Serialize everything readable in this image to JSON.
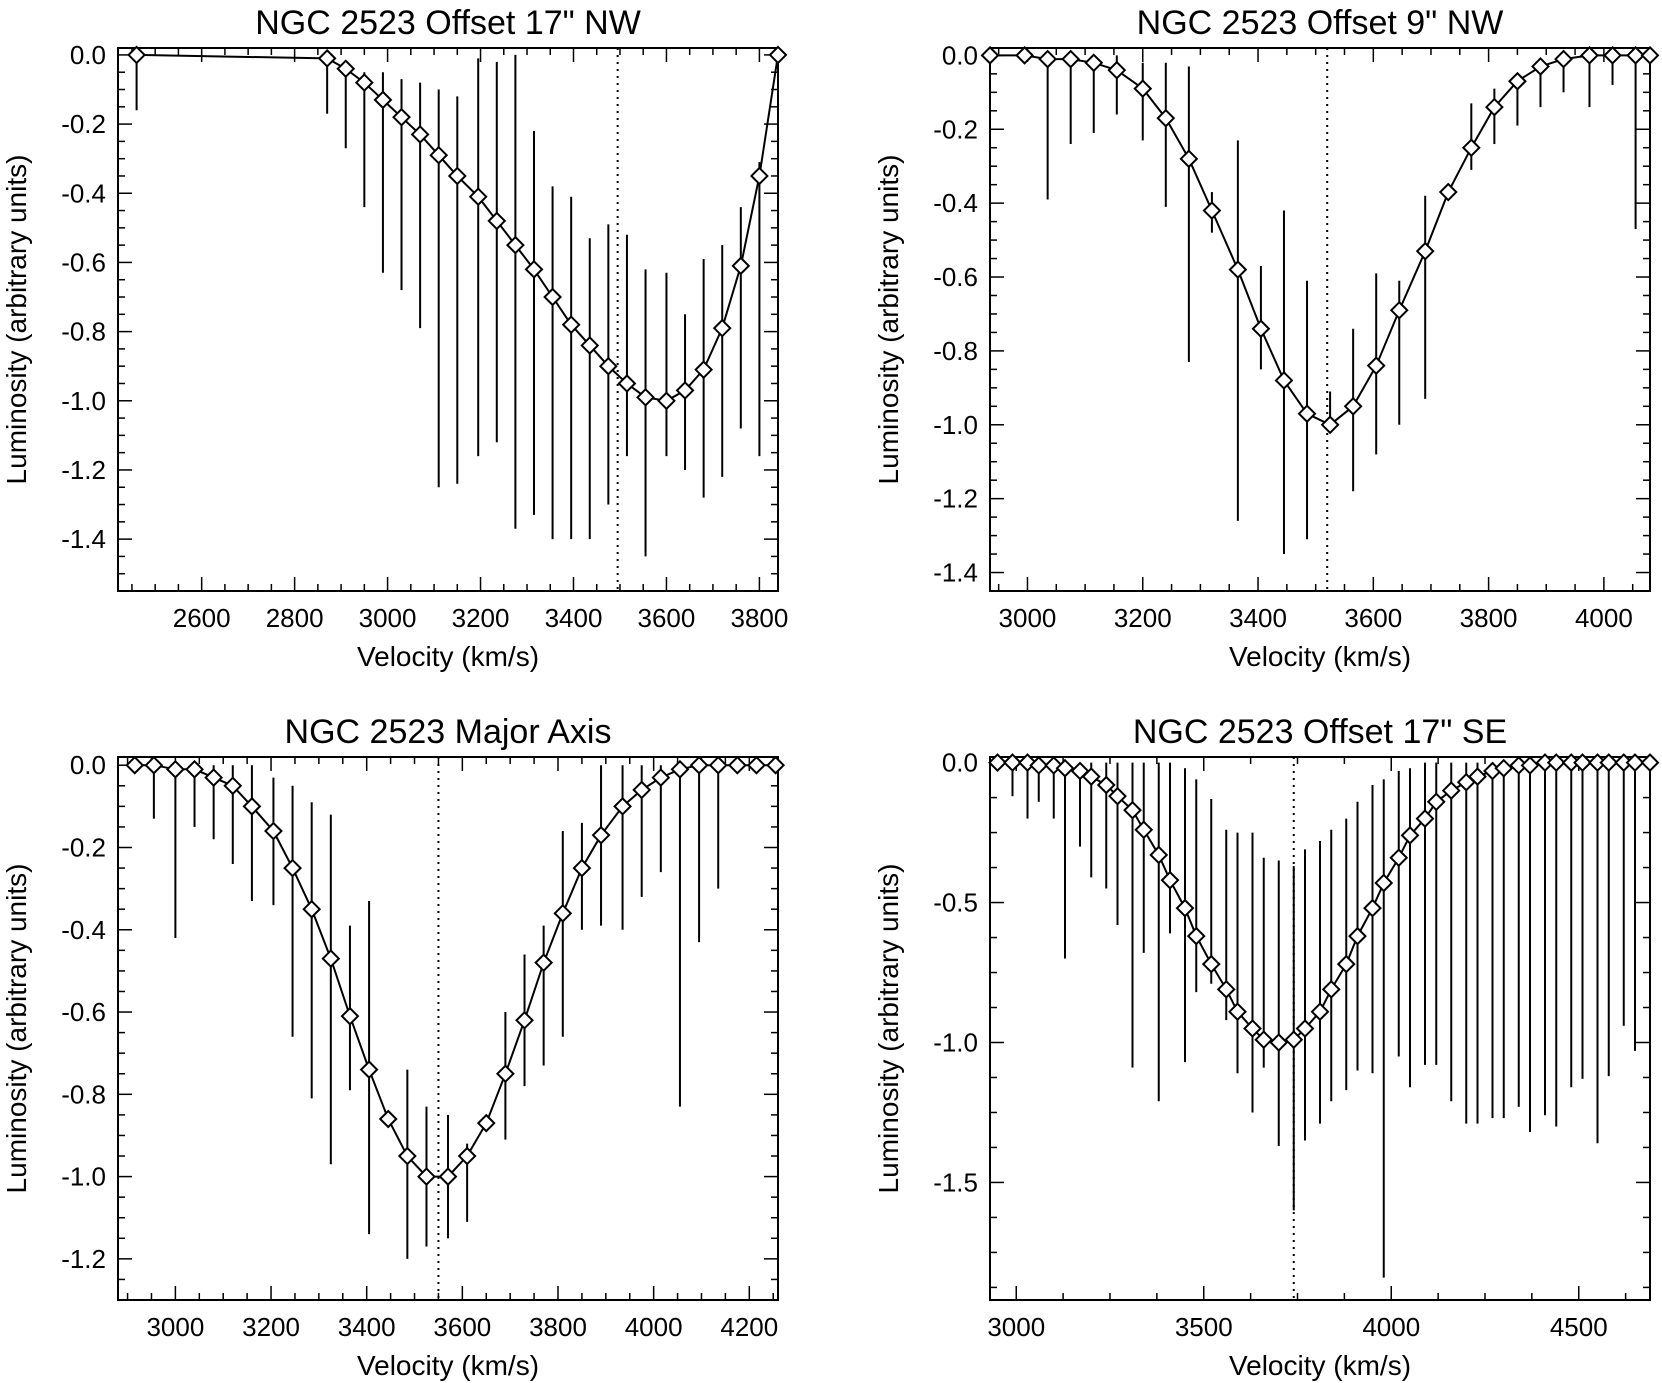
{
  "figure": {
    "line_color": "#000000",
    "background": "#ffffff",
    "marker": "diamond"
  },
  "chart_data": [
    {
      "type": "line",
      "title": "NGC 2523 Offset 17\" NW",
      "xlabel": "Velocity (km/s)",
      "ylabel": "Luminosity (arbitrary units)",
      "xlim": [
        2420,
        3840
      ],
      "ylim": [
        -1.55,
        0.02
      ],
      "xticks": [
        2600,
        2800,
        3000,
        3200,
        3400,
        3600,
        3800
      ],
      "yticks": [
        0.0,
        -0.2,
        -0.4,
        -0.6,
        -0.8,
        -1.0,
        -1.2,
        -1.4
      ],
      "xtick_labels": [
        "2600",
        "2800",
        "3000",
        "3200",
        "3400",
        "3600",
        "3800"
      ],
      "ytick_labels": [
        "0.0",
        "-0.2",
        "-0.4",
        "-0.6",
        "-0.8",
        "-1.0",
        "-1.2",
        "-1.4"
      ],
      "grid": false,
      "vline": 3495,
      "series": [
        {
          "x": [
            2460,
            2870,
            2910,
            2950,
            2990,
            3030,
            3070,
            3110,
            3150,
            3195,
            3235,
            3275,
            3315,
            3355,
            3395,
            3435,
            3475,
            3515,
            3555,
            3600,
            3640,
            3680,
            3720,
            3760,
            3800,
            3840
          ],
          "y": [
            0.0,
            -0.01,
            -0.04,
            -0.08,
            -0.13,
            -0.18,
            -0.23,
            -0.29,
            -0.35,
            -0.41,
            -0.48,
            -0.55,
            -0.62,
            -0.7,
            -0.78,
            -0.84,
            -0.9,
            -0.95,
            -0.99,
            -1.0,
            -0.97,
            -0.91,
            -0.79,
            -0.61,
            -0.35,
            0.0
          ],
          "err_low": [
            -0.16,
            -0.17,
            -0.27,
            -0.44,
            -0.63,
            -0.68,
            -0.79,
            -1.25,
            -1.24,
            -1.16,
            -1.12,
            -1.37,
            -1.33,
            -1.4,
            -1.4,
            -1.4,
            -1.3,
            -1.16,
            -1.45,
            -1.16,
            -1.2,
            -1.28,
            -1.22,
            -1.08,
            -1.16,
            0.0
          ],
          "err_high": [
            0.0,
            0.0,
            -0.02,
            -0.05,
            -0.05,
            -0.07,
            -0.08,
            -0.1,
            -0.12,
            -0.01,
            -0.02,
            0.0,
            -0.22,
            -0.38,
            -0.41,
            -0.53,
            -0.49,
            -0.52,
            -0.62,
            -0.63,
            -0.75,
            -0.59,
            -0.55,
            -0.44,
            -0.31,
            0.0
          ]
        }
      ]
    },
    {
      "type": "line",
      "title": "NGC 2523 Offset 9\" NW",
      "xlabel": "Velocity (km/s)",
      "ylabel": "Luminosity (arbitrary units)",
      "xlim": [
        2935,
        4080
      ],
      "ylim": [
        -1.45,
        0.02
      ],
      "xticks": [
        3000,
        3200,
        3400,
        3600,
        3800,
        4000
      ],
      "yticks": [
        0.0,
        -0.2,
        -0.4,
        -0.6,
        -0.8,
        -1.0,
        -1.2,
        -1.4
      ],
      "xtick_labels": [
        "3000",
        "3200",
        "3400",
        "3600",
        "3800",
        "4000"
      ],
      "ytick_labels": [
        "0.0",
        "-0.2",
        "-0.4",
        "-0.6",
        "-0.8",
        "-1.0",
        "-1.2",
        "-1.4"
      ],
      "grid": false,
      "vline": 3520,
      "series": [
        {
          "x": [
            2935,
            2995,
            3035,
            3075,
            3115,
            3155,
            3200,
            3240,
            3280,
            3320,
            3365,
            3405,
            3445,
            3485,
            3525,
            3565,
            3605,
            3645,
            3690,
            3730,
            3770,
            3810,
            3850,
            3890,
            3930,
            3975,
            4015,
            4055,
            4080
          ],
          "y": [
            0.0,
            0.0,
            -0.01,
            -0.01,
            -0.02,
            -0.04,
            -0.09,
            -0.17,
            -0.28,
            -0.42,
            -0.58,
            -0.74,
            -0.88,
            -0.97,
            -1.0,
            -0.95,
            -0.84,
            -0.69,
            -0.53,
            -0.37,
            -0.25,
            -0.14,
            -0.07,
            -0.03,
            -0.01,
            0.0,
            0.0,
            0.0,
            0.0
          ],
          "err_low": [
            0.0,
            0.0,
            -0.39,
            -0.24,
            -0.21,
            -0.16,
            -0.23,
            -0.41,
            -0.83,
            -0.48,
            -1.26,
            -0.85,
            -1.35,
            -1.31,
            -1.0,
            -1.18,
            -1.08,
            -1.0,
            -0.93,
            -0.38,
            -0.31,
            -0.24,
            -0.19,
            -0.14,
            -0.1,
            -0.14,
            -0.08,
            -0.47,
            0.0
          ],
          "err_high": [
            0.0,
            0.0,
            0.0,
            0.0,
            0.0,
            0.0,
            -0.02,
            -0.02,
            -0.03,
            -0.37,
            -0.23,
            -0.57,
            -0.42,
            -0.61,
            -0.91,
            -0.74,
            -0.59,
            -0.61,
            -0.38,
            -0.36,
            -0.13,
            -0.09,
            -0.05,
            -0.02,
            0.0,
            0.0,
            0.0,
            0.0,
            0.0
          ]
        }
      ]
    },
    {
      "type": "line",
      "title": "NGC 2523 Major Axis",
      "xlabel": "Velocity (km/s)",
      "ylabel": "Luminosity (arbitrary units)",
      "xlim": [
        2880,
        4260
      ],
      "ylim": [
        -1.3,
        0.02
      ],
      "xticks": [
        3000,
        3200,
        3400,
        3600,
        3800,
        4000,
        4200
      ],
      "yticks": [
        0.0,
        -0.2,
        -0.4,
        -0.6,
        -0.8,
        -1.0,
        -1.2
      ],
      "xtick_labels": [
        "3000",
        "3200",
        "3400",
        "3600",
        "3800",
        "4000",
        "4200"
      ],
      "ytick_labels": [
        "0.0",
        "-0.2",
        "-0.4",
        "-0.6",
        "-0.8",
        "-1.0",
        "-1.2"
      ],
      "grid": false,
      "vline": 3550,
      "series": [
        {
          "x": [
            2915,
            2955,
            3000,
            3040,
            3080,
            3120,
            3160,
            3205,
            3245,
            3285,
            3325,
            3365,
            3405,
            3445,
            3485,
            3525,
            3570,
            3610,
            3650,
            3690,
            3730,
            3770,
            3810,
            3850,
            3890,
            3935,
            3975,
            4015,
            4055,
            4095,
            4135,
            4175,
            4215,
            4255
          ],
          "y": [
            0.0,
            0.0,
            -0.01,
            -0.01,
            -0.03,
            -0.05,
            -0.1,
            -0.16,
            -0.25,
            -0.35,
            -0.47,
            -0.61,
            -0.74,
            -0.86,
            -0.95,
            -1.0,
            -1.0,
            -0.95,
            -0.87,
            -0.75,
            -0.62,
            -0.48,
            -0.36,
            -0.25,
            -0.17,
            -0.1,
            -0.06,
            -0.03,
            -0.01,
            0.0,
            0.0,
            0.0,
            0.0,
            0.0
          ],
          "err_low": [
            0.0,
            -0.13,
            -0.42,
            -0.15,
            -0.18,
            -0.24,
            -0.33,
            -0.34,
            -0.66,
            -0.81,
            -0.97,
            -0.79,
            -1.14,
            -0.86,
            -1.2,
            -1.17,
            -1.15,
            -1.11,
            -0.87,
            -0.91,
            -0.78,
            -0.73,
            -0.66,
            -0.4,
            -0.39,
            -0.4,
            -0.32,
            -0.26,
            -0.83,
            -0.43,
            -0.3,
            0.0,
            0.0,
            0.0
          ],
          "err_high": [
            0.0,
            0.0,
            0.0,
            0.0,
            0.0,
            0.0,
            0.0,
            -0.03,
            -0.05,
            -0.09,
            -0.12,
            -0.39,
            -0.33,
            -0.86,
            -0.74,
            -0.83,
            -0.85,
            -0.92,
            -0.87,
            -0.6,
            -0.46,
            -0.39,
            -0.16,
            -0.14,
            0.0,
            0.0,
            0.0,
            0.0,
            0.0,
            0.0,
            0.0,
            0.0,
            0.0,
            0.0
          ]
        }
      ]
    },
    {
      "type": "line",
      "title": "NGC 2523 Offset 17\" SE",
      "xlabel": "Velocity (km/s)",
      "ylabel": "Luminosity (arbitrary units)",
      "xlim": [
        2930,
        4690
      ],
      "ylim": [
        -1.92,
        0.02
      ],
      "xticks": [
        3000,
        3500,
        4000,
        4500
      ],
      "yticks": [
        0.0,
        -0.5,
        -1.0,
        -1.5
      ],
      "xtick_labels": [
        "3000",
        "3500",
        "4000",
        "4500"
      ],
      "ytick_labels": [
        "0.0",
        "-0.5",
        "-1.0",
        "-1.5"
      ],
      "grid": false,
      "vline": 3740,
      "series": [
        {
          "x": [
            2950,
            2990,
            3030,
            3060,
            3100,
            3130,
            3170,
            3200,
            3240,
            3270,
            3310,
            3340,
            3380,
            3410,
            3450,
            3480,
            3520,
            3560,
            3590,
            3630,
            3660,
            3700,
            3740,
            3770,
            3810,
            3840,
            3880,
            3910,
            3950,
            3980,
            4020,
            4050,
            4090,
            4120,
            4160,
            4200,
            4230,
            4270,
            4300,
            4340,
            4370,
            4410,
            4440,
            4480,
            4510,
            4550,
            4580,
            4620,
            4650,
            4690
          ],
          "y": [
            0.0,
            0.0,
            0.0,
            -0.01,
            -0.01,
            -0.02,
            -0.03,
            -0.05,
            -0.08,
            -0.12,
            -0.17,
            -0.24,
            -0.33,
            -0.42,
            -0.52,
            -0.62,
            -0.72,
            -0.81,
            -0.89,
            -0.95,
            -0.99,
            -1.0,
            -0.99,
            -0.95,
            -0.89,
            -0.81,
            -0.72,
            -0.62,
            -0.52,
            -0.43,
            -0.34,
            -0.26,
            -0.2,
            -0.14,
            -0.1,
            -0.07,
            -0.05,
            -0.03,
            -0.02,
            -0.01,
            -0.01,
            0.0,
            0.0,
            0.0,
            0.0,
            0.0,
            0.0,
            0.0,
            0.0,
            0.0
          ],
          "err_low": [
            0.0,
            -0.12,
            -0.2,
            -0.14,
            -0.2,
            -0.7,
            -0.3,
            -0.41,
            -0.45,
            -0.58,
            -1.09,
            -0.68,
            -1.21,
            -0.61,
            -1.07,
            -0.82,
            -0.79,
            -0.92,
            -1.11,
            -1.25,
            -1.09,
            -1.37,
            -1.6,
            -1.35,
            -1.29,
            -1.21,
            -1.17,
            -1.1,
            -1.11,
            -1.84,
            -1.05,
            -1.16,
            -1.08,
            -1.08,
            -1.21,
            -1.29,
            -1.29,
            -1.27,
            -1.27,
            -1.23,
            -1.32,
            -1.26,
            -1.3,
            -1.16,
            -1.13,
            -1.36,
            -1.12,
            -0.94,
            -1.03,
            -0.82
          ],
          "err_high": [
            0.0,
            0.0,
            0.0,
            0.0,
            0.0,
            0.0,
            0.0,
            0.0,
            0.0,
            0.0,
            0.0,
            0.0,
            0.0,
            0.0,
            -0.02,
            -0.06,
            -0.13,
            -0.24,
            -0.25,
            -0.25,
            -0.34,
            -0.35,
            -0.37,
            -0.31,
            -0.28,
            -0.24,
            -0.2,
            -0.14,
            -0.08,
            -0.06,
            -0.03,
            -0.02,
            0.0,
            0.0,
            0.0,
            0.0,
            0.0,
            0.0,
            0.0,
            0.0,
            0.0,
            0.0,
            0.0,
            0.0,
            0.0,
            0.0,
            0.0,
            0.0,
            0.0,
            0.0
          ]
        }
      ]
    }
  ]
}
